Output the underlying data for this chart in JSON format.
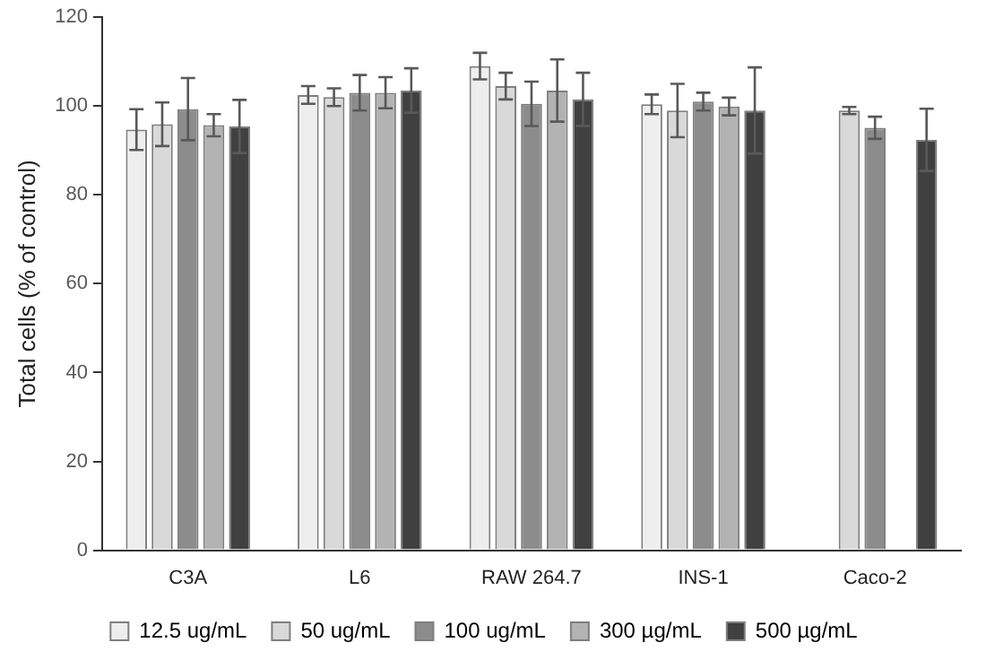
{
  "chart_data": {
    "type": "bar",
    "ylabel": "Total cells (% of control)",
    "categories": [
      "C3A",
      "L6",
      "RAW 264.7",
      "INS-1",
      "Caco-2"
    ],
    "ylim": [
      0,
      120
    ],
    "yticks": [
      0,
      20,
      40,
      60,
      80,
      100,
      120
    ],
    "grid": false,
    "legend": "bottom",
    "series": [
      {
        "name": "12.5 ug/mL",
        "color": "#eeeeee",
        "values": [
          94.7,
          102.5,
          109,
          100.4,
          null
        ],
        "errors": [
          4.6,
          2,
          3,
          2.2,
          null
        ]
      },
      {
        "name": "50 ug/mL",
        "color": "#d9d9d9",
        "values": [
          95.9,
          102,
          104.5,
          99,
          99
        ],
        "errors": [
          4.9,
          2,
          3,
          6,
          0.8
        ]
      },
      {
        "name": "100 ug/mL",
        "color": "#8c8c8c",
        "values": [
          99.3,
          103,
          100.5,
          101,
          95.1
        ],
        "errors": [
          7,
          4,
          5,
          2,
          2.5
        ]
      },
      {
        "name": "300 µg/mL",
        "color": "#b3b3b3",
        "values": [
          95.7,
          103,
          103.5,
          99.9,
          null
        ],
        "errors": [
          2.5,
          3.5,
          7,
          2,
          null
        ]
      },
      {
        "name": "500 µg/mL",
        "color": "#404040",
        "values": [
          95.4,
          103.5,
          101.5,
          99,
          92.4
        ],
        "errors": [
          6,
          5,
          6,
          9.7,
          7
        ]
      }
    ]
  }
}
